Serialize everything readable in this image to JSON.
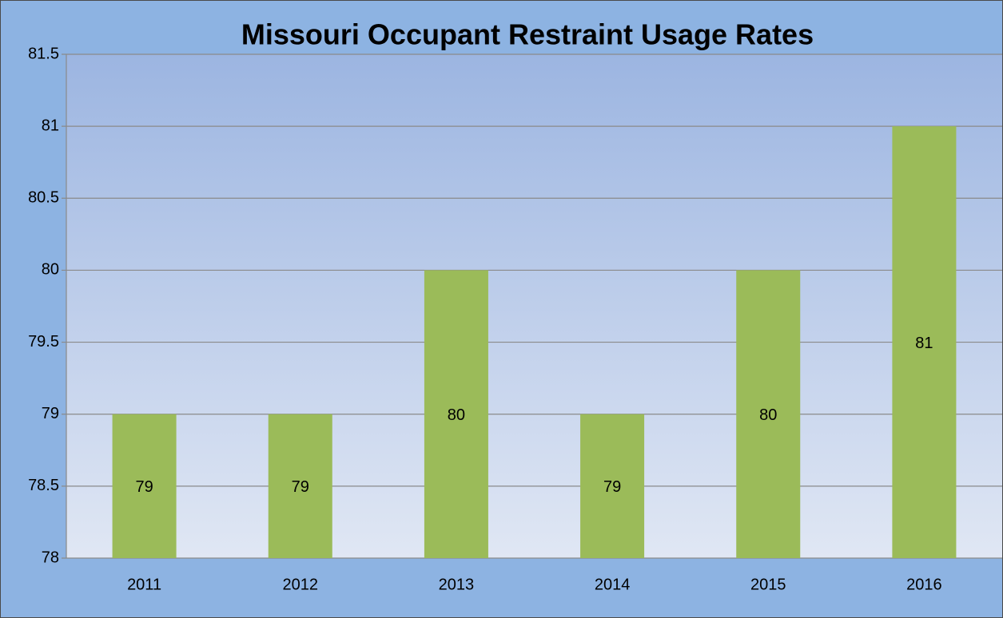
{
  "chart_data": {
    "type": "bar",
    "title": "Missouri Occupant Restraint Usage Rates",
    "categories": [
      "2011",
      "2012",
      "2013",
      "2014",
      "2015",
      "2016"
    ],
    "values": [
      79,
      79,
      80,
      79,
      80,
      81
    ],
    "color": "#9bbb59",
    "ylim": [
      78,
      81.5
    ],
    "yticks": [
      78,
      78.5,
      79,
      79.5,
      80,
      80.5,
      81,
      81.5
    ],
    "grid": true
  }
}
